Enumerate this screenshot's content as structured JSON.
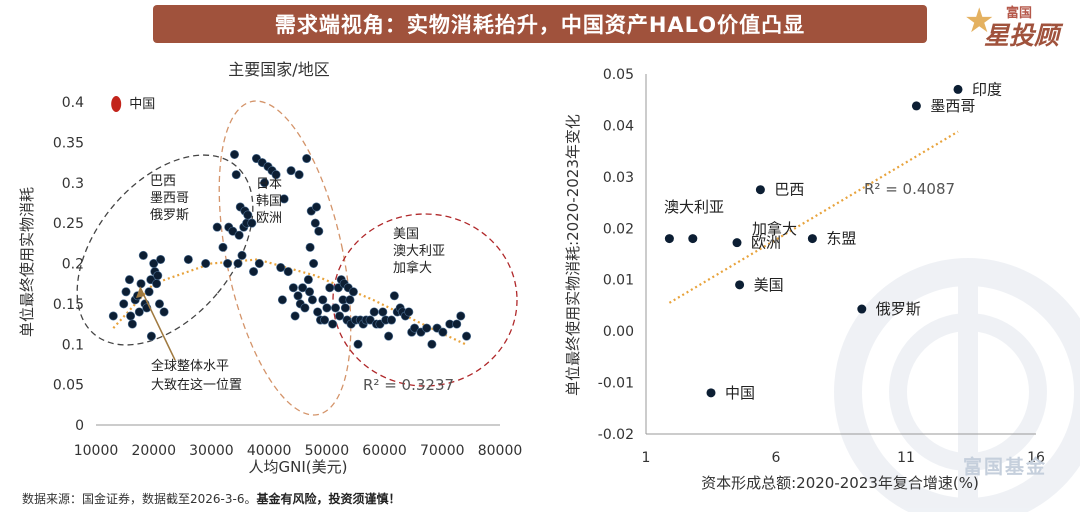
{
  "header": {
    "title": "需求端视角：实物消耗抬升，中国资产HALO价值凸显"
  },
  "logo": {
    "top": "富国",
    "main": "星投顾"
  },
  "watermark": {
    "text": "富国基金"
  },
  "footer": {
    "source": "数据来源：国金证券，数据截至2026-3-6。",
    "risk": "基金有风险，投资须谨慎！"
  },
  "colors": {
    "accent": "#a0523c",
    "point": "#0c1e33",
    "trend": "#e8a33c",
    "china": "#c2241b"
  },
  "chart_data": [
    {
      "type": "scatter",
      "title": "主要国家/地区",
      "xlabel": "人均GNI(美元)",
      "ylabel": "单位最终使用实物消耗",
      "xlim": [
        10000,
        80000
      ],
      "ylim": [
        0,
        0.4
      ],
      "x_ticks": [
        "10000",
        "20000",
        "30000",
        "40000",
        "50000",
        "60000",
        "70000",
        "80000"
      ],
      "y_ticks": [
        "0",
        "0.05",
        "0.1",
        "0.15",
        "0.2",
        "0.25",
        "0.3",
        "0.35",
        "0.4"
      ],
      "r2_label": "R² = 0.3237",
      "china_marker": {
        "label": "中国",
        "x": 13500,
        "y": 0.4
      },
      "groups": [
        {
          "label": "巴西\n墨西哥\n俄罗斯"
        },
        {
          "label": "日本\n韩国\n欧洲"
        },
        {
          "label": "美国\n澳大利亚\n加拿大"
        }
      ],
      "annotation": "全球整体水平\n大致在这一位置",
      "trend_x": [
        13000,
        20000,
        30000,
        38000,
        48000,
        58000,
        68000,
        74000
      ],
      "trend_y": [
        0.12,
        0.175,
        0.2,
        0.205,
        0.185,
        0.155,
        0.12,
        0.1
      ],
      "points": [
        [
          13000,
          0.135
        ],
        [
          14800,
          0.15
        ],
        [
          15200,
          0.165
        ],
        [
          15800,
          0.18
        ],
        [
          16000,
          0.135
        ],
        [
          16300,
          0.125
        ],
        [
          16800,
          0.155
        ],
        [
          17200,
          0.16
        ],
        [
          17500,
          0.14
        ],
        [
          17800,
          0.175
        ],
        [
          18200,
          0.21
        ],
        [
          18500,
          0.15
        ],
        [
          18800,
          0.145
        ],
        [
          19200,
          0.165
        ],
        [
          19500,
          0.18
        ],
        [
          19600,
          0.11
        ],
        [
          20000,
          0.2
        ],
        [
          20200,
          0.19
        ],
        [
          20500,
          0.175
        ],
        [
          20700,
          0.185
        ],
        [
          21000,
          0.15
        ],
        [
          21200,
          0.205
        ],
        [
          21800,
          0.14
        ],
        [
          26000,
          0.205
        ],
        [
          29000,
          0.2
        ],
        [
          31000,
          0.245
        ],
        [
          32000,
          0.22
        ],
        [
          32800,
          0.2
        ],
        [
          33000,
          0.245
        ],
        [
          33700,
          0.24
        ],
        [
          34000,
          0.335
        ],
        [
          34300,
          0.31
        ],
        [
          34600,
          0.2
        ],
        [
          34800,
          0.235
        ],
        [
          35000,
          0.27
        ],
        [
          35300,
          0.21
        ],
        [
          35600,
          0.245
        ],
        [
          35800,
          0.265
        ],
        [
          36100,
          0.25
        ],
        [
          36300,
          0.26
        ],
        [
          37000,
          0.25
        ],
        [
          37300,
          0.19
        ],
        [
          37800,
          0.33
        ],
        [
          38300,
          0.2
        ],
        [
          38800,
          0.325
        ],
        [
          39200,
          0.3
        ],
        [
          39800,
          0.32
        ],
        [
          40500,
          0.315
        ],
        [
          41200,
          0.31
        ],
        [
          42000,
          0.195
        ],
        [
          42300,
          0.155
        ],
        [
          42600,
          0.28
        ],
        [
          43300,
          0.19
        ],
        [
          43800,
          0.315
        ],
        [
          44200,
          0.17
        ],
        [
          44500,
          0.135
        ],
        [
          45000,
          0.16
        ],
        [
          45200,
          0.31
        ],
        [
          45400,
          0.15
        ],
        [
          45800,
          0.17
        ],
        [
          46200,
          0.145
        ],
        [
          46500,
          0.33
        ],
        [
          46800,
          0.18
        ],
        [
          47000,
          0.165
        ],
        [
          47100,
          0.22
        ],
        [
          47300,
          0.265
        ],
        [
          47500,
          0.155
        ],
        [
          47700,
          0.2
        ],
        [
          48000,
          0.25
        ],
        [
          48200,
          0.27
        ],
        [
          48400,
          0.14
        ],
        [
          48600,
          0.24
        ],
        [
          48900,
          0.13
        ],
        [
          49300,
          0.155
        ],
        [
          49600,
          0.13
        ],
        [
          50000,
          0.145
        ],
        [
          50500,
          0.17
        ],
        [
          51000,
          0.125
        ],
        [
          51500,
          0.145
        ],
        [
          52000,
          0.17
        ],
        [
          52200,
          0.135
        ],
        [
          52500,
          0.18
        ],
        [
          52800,
          0.155
        ],
        [
          53000,
          0.175
        ],
        [
          53200,
          0.145
        ],
        [
          53500,
          0.13
        ],
        [
          53700,
          0.17
        ],
        [
          54000,
          0.155
        ],
        [
          54200,
          0.125
        ],
        [
          54600,
          0.165
        ],
        [
          55000,
          0.13
        ],
        [
          55400,
          0.1
        ],
        [
          55800,
          0.13
        ],
        [
          56300,
          0.125
        ],
        [
          56800,
          0.13
        ],
        [
          57500,
          0.13
        ],
        [
          58200,
          0.14
        ],
        [
          58600,
          0.125
        ],
        [
          59200,
          0.125
        ],
        [
          59700,
          0.14
        ],
        [
          60200,
          0.13
        ],
        [
          60700,
          0.11
        ],
        [
          61200,
          0.13
        ],
        [
          61700,
          0.16
        ],
        [
          62200,
          0.14
        ],
        [
          62700,
          0.145
        ],
        [
          63100,
          0.14
        ],
        [
          63600,
          0.135
        ],
        [
          64200,
          0.14
        ],
        [
          64700,
          0.115
        ],
        [
          65200,
          0.12
        ],
        [
          66300,
          0.115
        ],
        [
          67300,
          0.12
        ],
        [
          68200,
          0.1
        ],
        [
          69100,
          0.12
        ],
        [
          70100,
          0.115
        ],
        [
          71300,
          0.125
        ],
        [
          72500,
          0.125
        ],
        [
          73200,
          0.135
        ],
        [
          74200,
          0.11
        ]
      ]
    },
    {
      "type": "scatter",
      "xlabel": "资本形成总额:2020-2023年复合增速(%)",
      "ylabel": "单位最终使用实物消耗:2020-2023年变化",
      "xlim": [
        1,
        16
      ],
      "ylim": [
        -0.02,
        0.05
      ],
      "x_ticks": [
        "1",
        "6",
        "11",
        "16"
      ],
      "y_ticks": [
        "-0.02",
        "-0.01",
        "0.00",
        "0.01",
        "0.02",
        "0.03",
        "0.04",
        "0.05"
      ],
      "r2_label": "R² = 0.4087",
      "trend_x": [
        1.9,
        13.0
      ],
      "trend_y": [
        0.0055,
        0.0388
      ],
      "points": [
        {
          "label": "印度",
          "x": 13.0,
          "y": 0.047
        },
        {
          "label": "墨西哥",
          "x": 11.4,
          "y": 0.0438
        },
        {
          "label": "巴西",
          "x": 5.4,
          "y": 0.0275
        },
        {
          "label": "",
          "x": 1.9,
          "y": 0.018
        },
        {
          "label": "",
          "x": 2.8,
          "y": 0.018
        },
        {
          "label": "欧洲",
          "x": 4.5,
          "y": 0.0172
        },
        {
          "label": "东盟",
          "x": 7.4,
          "y": 0.018
        },
        {
          "label": "美国",
          "x": 4.6,
          "y": 0.009
        },
        {
          "label": "俄罗斯",
          "x": 9.3,
          "y": 0.0043
        },
        {
          "label": "中国",
          "x": 3.5,
          "y": -0.012
        }
      ],
      "free_labels": [
        "澳大利亚",
        "加拿大"
      ]
    }
  ]
}
